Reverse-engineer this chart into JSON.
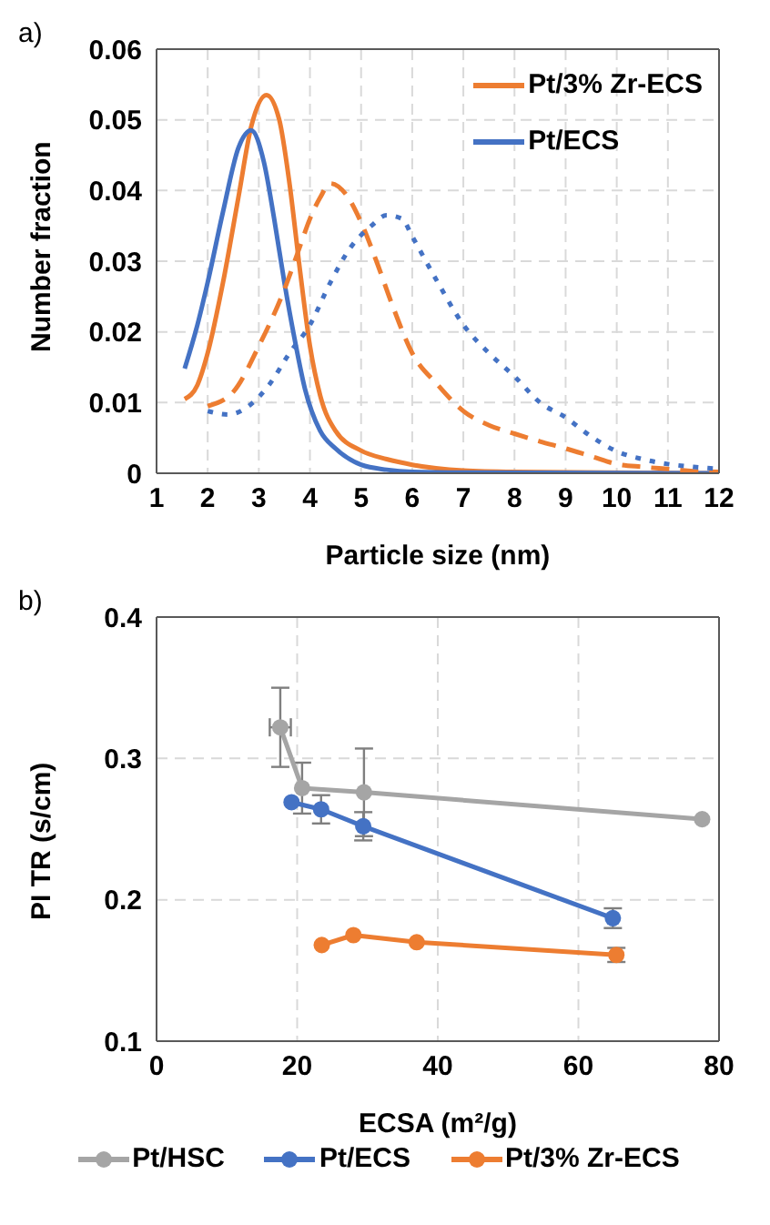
{
  "chart_data": [
    {
      "type": "line",
      "title": "a)",
      "xlabel": "Particle size (nm)",
      "ylabel": "Number fraction",
      "xlim": [
        1,
        12
      ],
      "xticks": [
        1,
        2,
        3,
        4,
        5,
        6,
        7,
        8,
        9,
        10,
        11,
        12
      ],
      "ylim": [
        0,
        0.06
      ],
      "yticks": [
        0,
        0.01,
        0.02,
        0.03,
        0.04,
        0.05,
        0.06
      ],
      "grid": true,
      "legend": "top right",
      "marker": "none",
      "series": [
        {
          "name": "Pt/3% Zr-ECS",
          "color": "#ed7d31",
          "line_style": "solid",
          "x": [
            1.55,
            1.8,
            2.0,
            2.3,
            2.6,
            2.85,
            3.15,
            3.4,
            3.6,
            3.8,
            4.0,
            4.2,
            4.5,
            5,
            5.5,
            6,
            7,
            8,
            12
          ],
          "values": [
            0.0105,
            0.0125,
            0.017,
            0.027,
            0.039,
            0.049,
            0.0535,
            0.05,
            0.041,
            0.029,
            0.018,
            0.011,
            0.006,
            0.0032,
            0.002,
            0.0012,
            0.0004,
            0.0002,
            0
          ]
        },
        {
          "name": "Pt/ECS",
          "color": "#4472c4",
          "line_style": "solid",
          "x": [
            1.55,
            1.8,
            2.0,
            2.3,
            2.6,
            2.85,
            3.1,
            3.3,
            3.5,
            3.7,
            3.9,
            4.2,
            4.5,
            5,
            5.5,
            6,
            7,
            12
          ],
          "values": [
            0.0148,
            0.021,
            0.027,
            0.037,
            0.046,
            0.0485,
            0.044,
            0.036,
            0.027,
            0.019,
            0.012,
            0.006,
            0.0035,
            0.0012,
            0.0005,
            0.0002,
            0.0001,
            0
          ]
        },
        {
          "color": "#ed7d31",
          "line_style": "dashed",
          "x": [
            2.0,
            2.5,
            3.0,
            3.5,
            3.8,
            4.0,
            4.2,
            4.4,
            4.7,
            5.0,
            5.3,
            5.6,
            6.0,
            6.5,
            7,
            7.5,
            8,
            8.5,
            9,
            9.5,
            10,
            10.5,
            11,
            11.5,
            12
          ],
          "values": [
            0.0095,
            0.0115,
            0.018,
            0.026,
            0.032,
            0.036,
            0.039,
            0.041,
            0.0395,
            0.0355,
            0.03,
            0.024,
            0.017,
            0.0125,
            0.0088,
            0.0068,
            0.0056,
            0.0045,
            0.0035,
            0.0024,
            0.0013,
            0.0009,
            0.0006,
            0.0003,
            0.0002
          ]
        },
        {
          "color": "#4472c4",
          "line_style": "dotted",
          "x": [
            2.0,
            2.4,
            2.8,
            3.2,
            3.6,
            4.0,
            4.4,
            4.8,
            5.2,
            5.5,
            5.8,
            6.0,
            6.5,
            7,
            7.5,
            8,
            8.5,
            9,
            9.5,
            10,
            10.5,
            11,
            11.5,
            12
          ],
          "values": [
            0.0088,
            0.0083,
            0.0095,
            0.0125,
            0.017,
            0.021,
            0.027,
            0.032,
            0.035,
            0.0365,
            0.036,
            0.0335,
            0.027,
            0.021,
            0.017,
            0.0137,
            0.01,
            0.0079,
            0.0052,
            0.0031,
            0.002,
            0.0013,
            0.0009,
            0.0006
          ]
        }
      ]
    },
    {
      "type": "line",
      "title": "b)",
      "xlabel": "ECSA (m²/g)",
      "ylabel": "PI TR (s/cm)",
      "xlim": [
        0,
        80
      ],
      "xticks": [
        0,
        20,
        40,
        60,
        80
      ],
      "ylim": [
        0.1,
        0.4
      ],
      "yticks": [
        0.1,
        0.2,
        0.3,
        0.4
      ],
      "grid": true,
      "legend": "bottom",
      "marker": "circle",
      "series": [
        {
          "name": "Pt/HSC",
          "color": "#a5a5a5",
          "x": [
            17.6,
            20.7,
            29.5,
            77.6
          ],
          "values": [
            0.322,
            0.279,
            0.276,
            0.257
          ],
          "errors": [
            0.028,
            0.018,
            0.031,
            null
          ],
          "xerrors": [
            1.5,
            null,
            null,
            null
          ]
        },
        {
          "name": "Pt/ECS",
          "color": "#4472c4",
          "x": [
            19.2,
            23.4,
            29.4,
            64.9
          ],
          "values": [
            0.269,
            0.264,
            0.252,
            0.187
          ],
          "errors": [
            null,
            0.01,
            0.01,
            0.007
          ]
        },
        {
          "name": "Pt/3% Zr-ECS",
          "color": "#ed7d31",
          "x": [
            23.5,
            28.0,
            37.0,
            65.4
          ],
          "values": [
            0.168,
            0.175,
            0.17,
            0.161
          ],
          "errors": [
            null,
            null,
            null,
            0.005
          ]
        }
      ]
    }
  ]
}
